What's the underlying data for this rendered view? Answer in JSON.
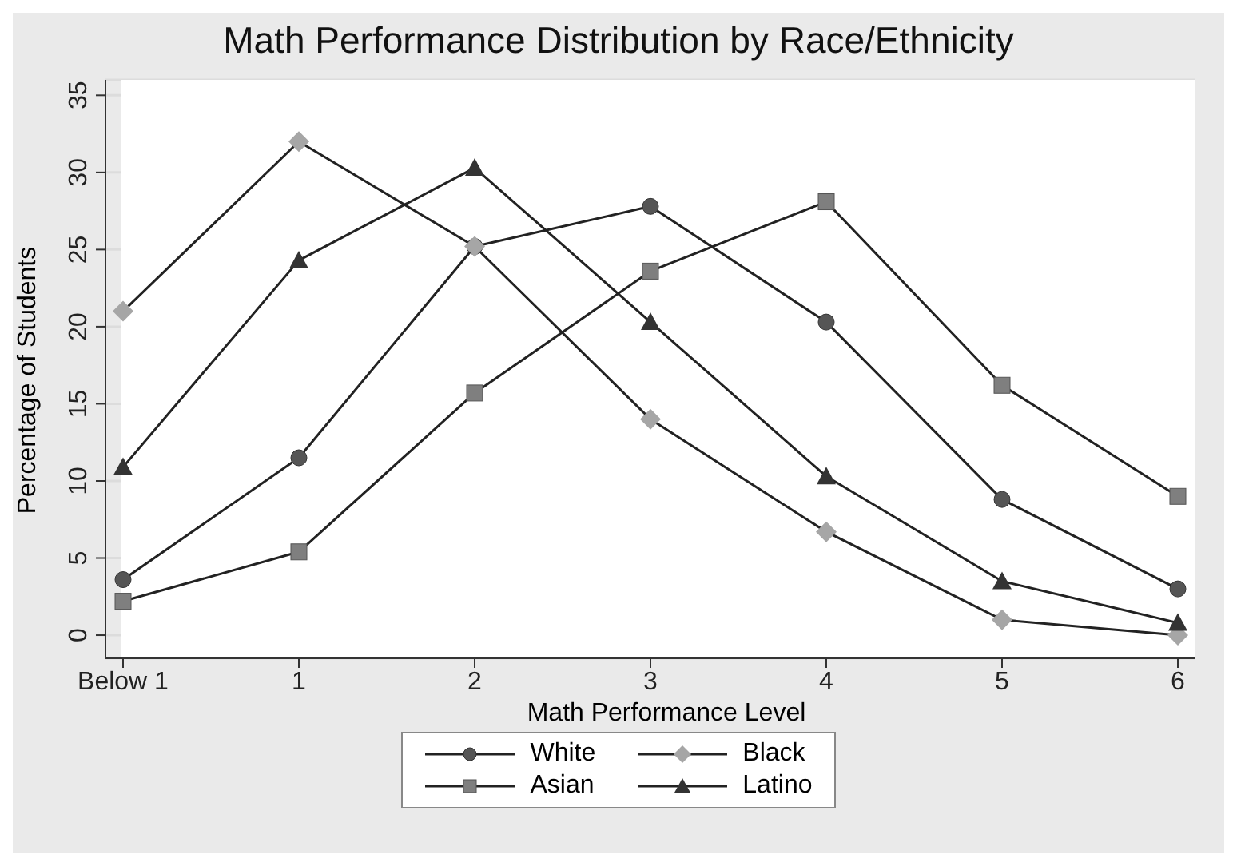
{
  "chart_data": {
    "type": "line",
    "title": "Math Performance Distribution by Race/Ethnicity",
    "xlabel": "Math Performance Level",
    "ylabel": "Percentage of Students",
    "categories": [
      "Below 1",
      "1",
      "2",
      "3",
      "4",
      "5",
      "6"
    ],
    "series": [
      {
        "name": "White",
        "color": "#555555",
        "marker": "circle",
        "values": [
          3.6,
          11.5,
          25.2,
          27.8,
          20.3,
          8.8,
          3.0
        ]
      },
      {
        "name": "Black",
        "color": "#a6a6a6",
        "marker": "diamond",
        "values": [
          21,
          32,
          25.2,
          14,
          6.7,
          1,
          0
        ]
      },
      {
        "name": "Asian",
        "color": "#7f7f7f",
        "marker": "square",
        "values": [
          2.2,
          5.4,
          15.7,
          23.6,
          28.1,
          16.2,
          9.0
        ]
      },
      {
        "name": "Latino",
        "color": "#333333",
        "marker": "triangle",
        "values": [
          10.9,
          24.3,
          30.3,
          20.3,
          10.3,
          3.5,
          0.8
        ]
      }
    ],
    "ylim": [
      -1.5,
      36
    ],
    "yticks": [
      0,
      5,
      10,
      15,
      20,
      25,
      30,
      35
    ],
    "grid": "y",
    "legend": "bottom",
    "line_style": "solid"
  }
}
